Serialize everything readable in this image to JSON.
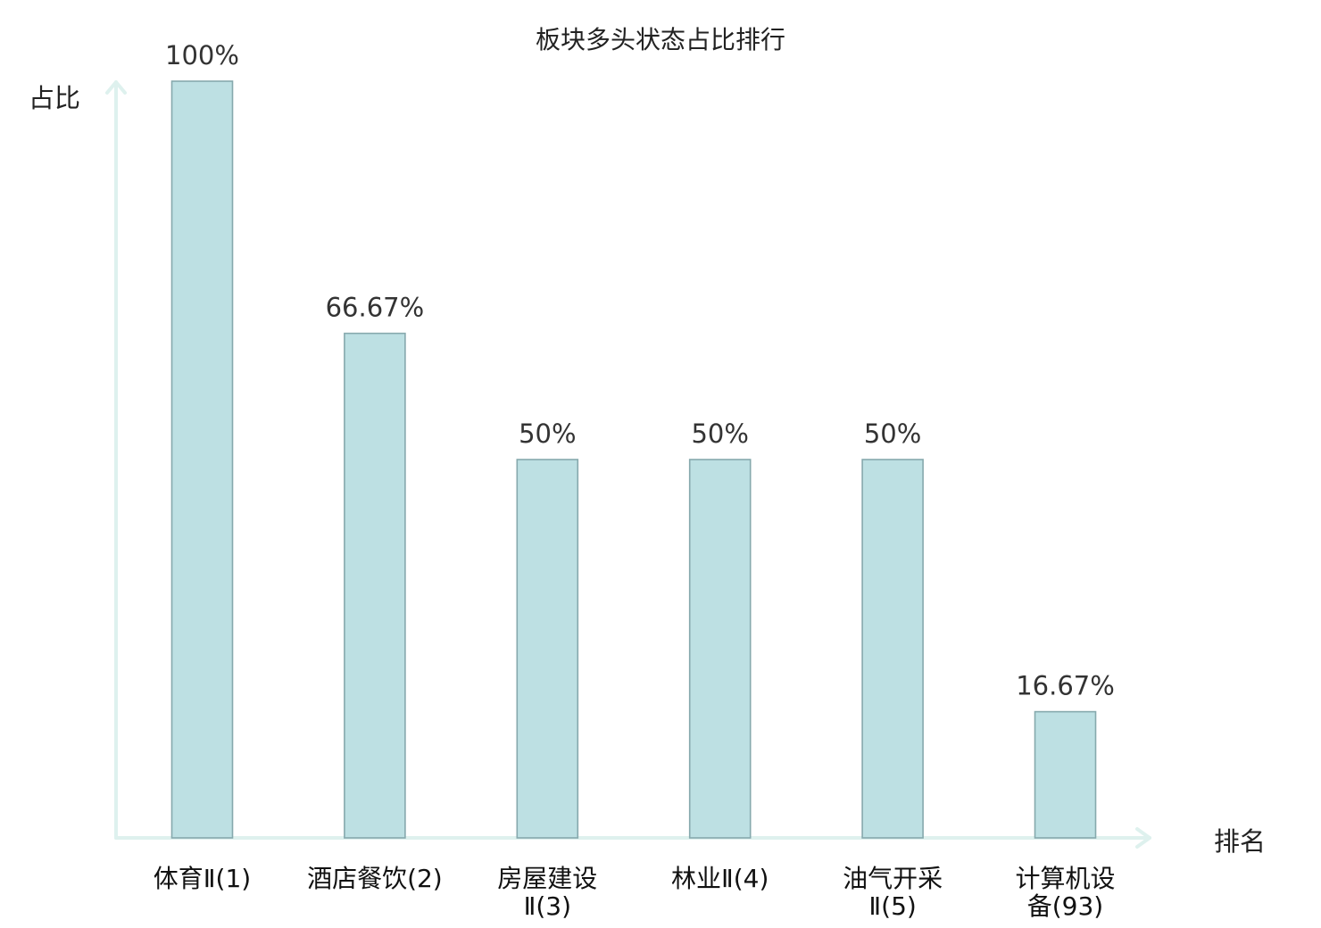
{
  "chart_data": {
    "type": "bar",
    "title": "板块多头状态占比排行",
    "ylabel": "占比",
    "xlabel": "排名",
    "ylim": [
      0,
      100
    ],
    "grid": false,
    "legend": "none",
    "categories": [
      {
        "lines": [
          "体育Ⅱ(1)"
        ],
        "highlight": false
      },
      {
        "lines": [
          "酒店餐饮(2)"
        ],
        "highlight": false
      },
      {
        "lines": [
          "房屋建设",
          "Ⅱ(3)"
        ],
        "highlight": false
      },
      {
        "lines": [
          "林业Ⅱ(4)"
        ],
        "highlight": false
      },
      {
        "lines": [
          "油气开采",
          "Ⅱ(5)"
        ],
        "highlight": false
      },
      {
        "lines": [
          "计算机设",
          "备(93)"
        ],
        "highlight": true
      }
    ],
    "values": [
      100,
      66.67,
      50,
      50,
      50,
      16.67
    ],
    "value_labels": [
      "100%",
      "66.67%",
      "50%",
      "50%",
      "50%",
      "16.67%"
    ],
    "colors": {
      "bar_fill": "#bde0e3",
      "bar_stroke": "#86a9ad",
      "axis": "#def1ee",
      "highlight_text": "#e8141c",
      "text": "#111111"
    }
  }
}
